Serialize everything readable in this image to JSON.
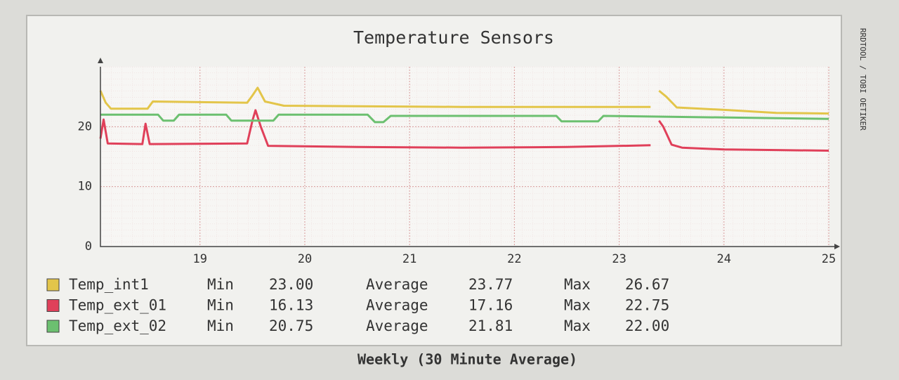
{
  "chart_data": {
    "type": "line",
    "title": "Temperature Sensors",
    "caption": "Weekly (30 Minute Average)",
    "watermark": "RRDTOOL / TOBI OETIKER",
    "xlim": [
      18.05,
      25
    ],
    "xticks": [
      19,
      20,
      21,
      22,
      23,
      24,
      25
    ],
    "ylim": [
      0,
      30
    ],
    "yticks": [
      0,
      10,
      20
    ],
    "grid": true,
    "stat_labels": [
      "Min",
      "Average",
      "Max"
    ],
    "series": [
      {
        "name": "Temp_int1",
        "color": "#e3c54a",
        "x": [
          18.05,
          18.1,
          18.15,
          18.5,
          18.55,
          19.45,
          19.5,
          19.55,
          19.62,
          19.8,
          20.5,
          21.5,
          22.5,
          23.3,
          23.35,
          23.38,
          23.45,
          23.55,
          24.0,
          24.5,
          25.0
        ],
        "values": [
          26.0,
          24.0,
          23.0,
          23.0,
          24.2,
          24.0,
          25.2,
          26.5,
          24.2,
          23.5,
          23.4,
          23.3,
          23.3,
          23.3,
          null,
          26.0,
          25.0,
          23.2,
          22.8,
          22.3,
          22.2
        ],
        "stats": [
          "23.00",
          "23.77",
          "26.67"
        ]
      },
      {
        "name": "Temp_ext_01",
        "color": "#e0405a",
        "x": [
          18.05,
          18.08,
          18.12,
          18.45,
          18.48,
          18.52,
          19.45,
          19.5,
          19.53,
          19.58,
          19.65,
          20.5,
          21.5,
          22.5,
          23.3,
          23.35,
          23.38,
          23.42,
          23.5,
          23.6,
          24.0,
          24.5,
          25.0
        ],
        "values": [
          18.0,
          21.2,
          17.2,
          17.1,
          20.5,
          17.1,
          17.2,
          21.0,
          22.75,
          20.0,
          16.8,
          16.6,
          16.5,
          16.6,
          16.9,
          null,
          21.0,
          20.0,
          17.0,
          16.5,
          16.2,
          16.1,
          16.0
        ],
        "stats": [
          "16.13",
          "17.16",
          "22.75"
        ]
      },
      {
        "name": "Temp_ext_02",
        "color": "#6cc070",
        "x": [
          18.05,
          18.6,
          18.65,
          18.75,
          18.8,
          19.25,
          19.3,
          19.7,
          19.75,
          20.6,
          20.67,
          20.75,
          20.82,
          22.4,
          22.45,
          22.8,
          22.85,
          25.0
        ],
        "values": [
          22.0,
          22.0,
          21.0,
          21.0,
          22.0,
          22.0,
          21.0,
          21.0,
          22.0,
          22.0,
          20.75,
          20.75,
          21.8,
          21.8,
          20.9,
          20.9,
          21.8,
          21.3
        ],
        "stats": [
          "20.75",
          "21.81",
          "22.00"
        ]
      }
    ]
  }
}
